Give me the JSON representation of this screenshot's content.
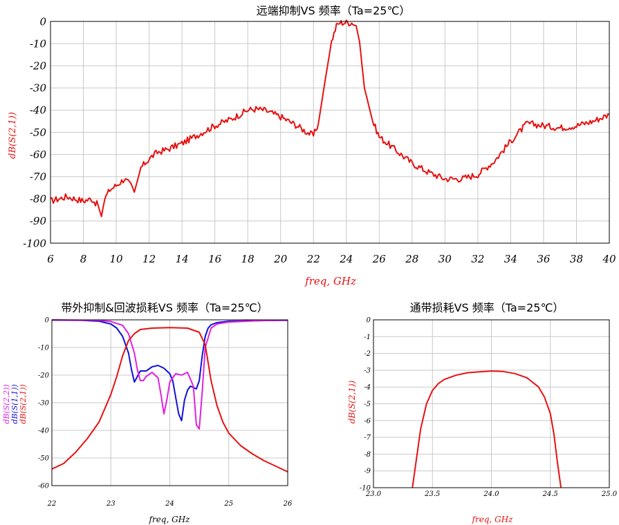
{
  "colors": {
    "red": "#e81010",
    "blue": "#1010d8",
    "magenta": "#e020e0",
    "grid": "#c8c8c8",
    "axis": "#000000"
  },
  "chart_data": [
    {
      "id": "far-rejection",
      "type": "line",
      "title": "远端抑制VS 频率（Ta=25℃）",
      "xlabel": "freq, GHz",
      "ylabel": "dB(S(2,1))",
      "xlim": [
        6,
        40
      ],
      "ylim": [
        -100,
        0
      ],
      "xticks": [
        6,
        8,
        10,
        12,
        14,
        16,
        18,
        20,
        22,
        24,
        26,
        28,
        30,
        32,
        34,
        36,
        38,
        40
      ],
      "yticks": [
        0,
        -10,
        -20,
        -30,
        -40,
        -50,
        -60,
        -70,
        -80,
        -90,
        -100
      ],
      "grid": true,
      "series": [
        {
          "color": "#e81010",
          "noise": 1.5,
          "x": [
            6,
            7,
            8,
            8.5,
            8.9,
            9.1,
            9.3,
            9.6,
            10,
            10.5,
            10.9,
            11.1,
            11.5,
            12,
            12.5,
            13,
            14,
            15,
            16,
            17,
            18,
            18.5,
            19,
            20,
            21,
            21.5,
            22,
            22.3,
            22.7,
            23.1,
            23.4,
            23.6,
            24,
            24.4,
            24.6,
            24.8,
            25.1,
            25.6,
            26,
            27,
            28,
            29,
            30,
            31,
            32,
            33,
            34,
            35,
            36,
            37,
            38,
            39,
            40
          ],
          "y": [
            -81,
            -79,
            -81,
            -80,
            -83,
            -88,
            -80,
            -76,
            -74,
            -71,
            -74,
            -77,
            -66,
            -62,
            -59,
            -58,
            -55,
            -51,
            -47,
            -44,
            -40,
            -39.5,
            -40,
            -43,
            -47,
            -49.5,
            -51.5,
            -46,
            -27,
            -9,
            -2,
            -0.6,
            -0.5,
            -0.6,
            -2,
            -9,
            -30,
            -45,
            -52,
            -58,
            -64,
            -68,
            -71,
            -71,
            -69,
            -63,
            -54,
            -46,
            -47,
            -48,
            -47,
            -45,
            -42
          ]
        }
      ]
    },
    {
      "id": "out-of-band-return-loss",
      "type": "line",
      "title": "带外抑制&回波损耗VS 频率（Ta=25℃）",
      "xlabel": "freq, GHz",
      "ylabel_lines": [
        "dB(S(2,2))",
        "dB(S(1,1))",
        "dB(S(2,1))"
      ],
      "ylabel_colors": [
        "#e020e0",
        "#1010d8",
        "#e81010"
      ],
      "xlim": [
        22,
        26
      ],
      "ylim": [
        -60,
        0
      ],
      "xticks": [
        22,
        23,
        24,
        25,
        26
      ],
      "yticks": [
        0,
        -10,
        -20,
        -30,
        -40,
        -50,
        -60
      ],
      "grid": true,
      "series": [
        {
          "color": "#1010d8",
          "x": [
            22,
            22.5,
            22.8,
            23,
            23.1,
            23.2,
            23.3,
            23.35,
            23.4,
            23.45,
            23.5,
            23.6,
            23.7,
            23.8,
            23.9,
            24,
            24.05,
            24.1,
            24.15,
            24.2,
            24.25,
            24.3,
            24.35,
            24.4,
            24.45,
            24.5,
            24.55,
            24.6,
            24.65,
            24.7,
            24.8,
            25,
            25.5,
            26
          ],
          "y": [
            -0.1,
            -0.2,
            -0.5,
            -1.5,
            -3,
            -6,
            -12,
            -18,
            -22.5,
            -20.5,
            -18.5,
            -18.5,
            -17,
            -16.5,
            -17.5,
            -19.5,
            -22,
            -28,
            -34,
            -36.5,
            -29,
            -25.5,
            -24,
            -24.5,
            -25,
            -22,
            -13,
            -6,
            -3,
            -1.8,
            -1,
            -0.5,
            -0.3,
            -0.2
          ]
        },
        {
          "color": "#e020e0",
          "x": [
            22,
            22.8,
            23,
            23.2,
            23.3,
            23.4,
            23.45,
            23.5,
            23.55,
            23.6,
            23.7,
            23.8,
            23.85,
            23.9,
            23.95,
            24,
            24.1,
            24.2,
            24.3,
            24.4,
            24.45,
            24.5,
            24.55,
            24.6,
            24.7,
            24.8,
            25,
            25.5,
            26
          ],
          "y": [
            0,
            -0.2,
            -0.6,
            -2,
            -5,
            -12,
            -18,
            -22,
            -22,
            -20.5,
            -19,
            -21,
            -27,
            -34,
            -29,
            -22.5,
            -19.5,
            -20,
            -19,
            -24,
            -38,
            -39.5,
            -26,
            -10,
            -3,
            -1.5,
            -0.8,
            -0.3,
            -0.1
          ]
        },
        {
          "color": "#e81010",
          "x": [
            22,
            22.2,
            22.4,
            22.6,
            22.8,
            23,
            23.1,
            23.2,
            23.3,
            23.4,
            23.5,
            23.7,
            24,
            24.3,
            24.5,
            24.6,
            24.7,
            24.8,
            24.9,
            25,
            25.2,
            25.4,
            25.6,
            25.8,
            26
          ],
          "y": [
            -54,
            -52,
            -48,
            -43,
            -37,
            -27,
            -20.5,
            -13,
            -7.5,
            -5,
            -3.5,
            -3,
            -2.8,
            -3,
            -4.5,
            -9,
            -22,
            -31,
            -37,
            -41,
            -45.5,
            -48.5,
            -51,
            -53,
            -55
          ]
        }
      ]
    },
    {
      "id": "passband-loss",
      "type": "line",
      "title": "通带损耗VS 频率（Ta=25℃）",
      "xlabel": "freq, GHz",
      "ylabel": "dB(S(2,1))",
      "xlim": [
        23.0,
        25.0
      ],
      "ylim": [
        -10,
        0
      ],
      "xticks": [
        "23.0",
        "23.5",
        "24.0",
        "24.5",
        "25.0"
      ],
      "yticks": [
        0,
        -1,
        -2,
        -3,
        -4,
        -5,
        -6,
        -7,
        -8,
        -9,
        -10
      ],
      "grid": true,
      "series": [
        {
          "color": "#e81010",
          "x": [
            23.33,
            23.36,
            23.4,
            23.45,
            23.5,
            23.55,
            23.6,
            23.7,
            23.8,
            23.9,
            24.0,
            24.1,
            24.2,
            24.3,
            24.4,
            24.45,
            24.5,
            24.53,
            24.56,
            24.59
          ],
          "y": [
            -10,
            -8.5,
            -6.5,
            -5,
            -4.2,
            -3.8,
            -3.55,
            -3.3,
            -3.15,
            -3.1,
            -3.05,
            -3.08,
            -3.2,
            -3.45,
            -4,
            -4.6,
            -5.6,
            -6.8,
            -8.5,
            -10
          ]
        }
      ]
    }
  ]
}
